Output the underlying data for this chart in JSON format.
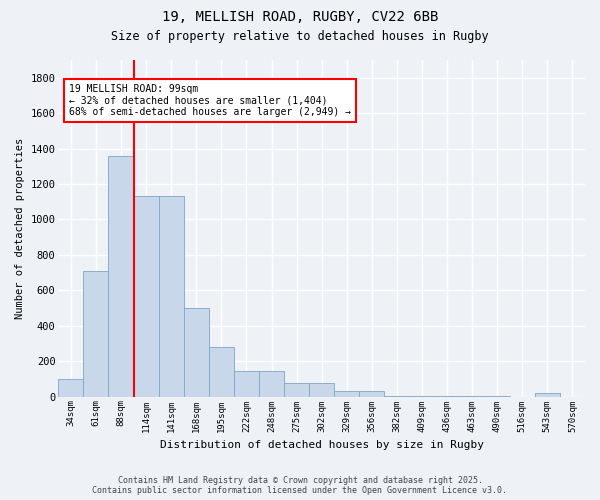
{
  "title_line1": "19, MELLISH ROAD, RUGBY, CV22 6BB",
  "title_line2": "Size of property relative to detached houses in Rugby",
  "xlabel": "Distribution of detached houses by size in Rugby",
  "ylabel": "Number of detached properties",
  "bar_labels": [
    "34sqm",
    "61sqm",
    "88sqm",
    "114sqm",
    "141sqm",
    "168sqm",
    "195sqm",
    "222sqm",
    "248sqm",
    "275sqm",
    "302sqm",
    "329sqm",
    "356sqm",
    "382sqm",
    "409sqm",
    "436sqm",
    "463sqm",
    "490sqm",
    "516sqm",
    "543sqm",
    "570sqm"
  ],
  "bar_values": [
    100,
    710,
    1360,
    1130,
    1130,
    500,
    280,
    145,
    145,
    75,
    75,
    30,
    30,
    5,
    5,
    5,
    5,
    5,
    0,
    20,
    0
  ],
  "bar_color": "#c8d8ea",
  "bar_edge_color": "#7aa8c8",
  "vline_color": "red",
  "annotation_text": "19 MELLISH ROAD: 99sqm\n← 32% of detached houses are smaller (1,404)\n68% of semi-detached houses are larger (2,949) →",
  "annotation_box_facecolor": "white",
  "annotation_box_edgecolor": "red",
  "ylim": [
    0,
    1900
  ],
  "yticks": [
    0,
    200,
    400,
    600,
    800,
    1000,
    1200,
    1400,
    1600,
    1800
  ],
  "bg_color": "#eef2f7",
  "grid_color": "white",
  "footer_line1": "Contains HM Land Registry data © Crown copyright and database right 2025.",
  "footer_line2": "Contains public sector information licensed under the Open Government Licence v3.0."
}
